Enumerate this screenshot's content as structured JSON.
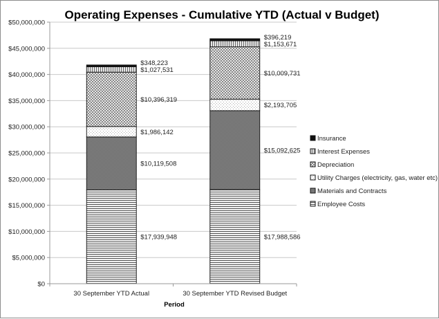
{
  "chart_data": {
    "type": "bar",
    "stacked": true,
    "title": "Operating Expenses - Cumulative YTD (Actual v Budget)",
    "xlabel": "Period",
    "ylabel": "",
    "ylim": [
      0,
      50000000
    ],
    "ytick_step": 5000000,
    "yticks": [
      "$0",
      "$5,000,000",
      "$10,000,000",
      "$15,000,000",
      "$20,000,000",
      "$25,000,000",
      "$30,000,000",
      "$35,000,000",
      "$40,000,000",
      "$45,000,000",
      "$50,000,000"
    ],
    "grid": true,
    "legend_position": "right",
    "categories": [
      "30 September YTD Actual",
      "30 September YTD Revised Budget"
    ],
    "series": [
      {
        "name": "Employee Costs",
        "pattern": "hlines",
        "values": [
          17939948,
          17988586
        ],
        "labels": [
          "$17,939,948",
          "$17,988,586"
        ]
      },
      {
        "name": "Materials and Contracts",
        "pattern": "darkcheck",
        "values": [
          10119508,
          15092625
        ],
        "labels": [
          "$10,119,508",
          "$15,092,625"
        ]
      },
      {
        "name": "Utility Charges (electricity, gas, water etc)",
        "pattern": "dots",
        "values": [
          1986142,
          2193705
        ],
        "labels": [
          "$1,986,142",
          "$2,193,705"
        ]
      },
      {
        "name": "Depreciation",
        "pattern": "check",
        "values": [
          10396319,
          10009731
        ],
        "labels": [
          "$10,396,319",
          "$10,009,731"
        ]
      },
      {
        "name": "Interest Expenses",
        "pattern": "vlines",
        "values": [
          1027531,
          1153671
        ],
        "labels": [
          "$1,027,531",
          "$1,153,671"
        ]
      },
      {
        "name": "Insurance",
        "pattern": "solid",
        "values": [
          348223,
          396219
        ],
        "labels": [
          "$348,223",
          "$396,219"
        ]
      }
    ],
    "legend_order": [
      "Insurance",
      "Interest Expenses",
      "Depreciation",
      "Utility Charges (electricity, gas, water etc)",
      "Materials and Contracts",
      "Employee Costs"
    ]
  }
}
